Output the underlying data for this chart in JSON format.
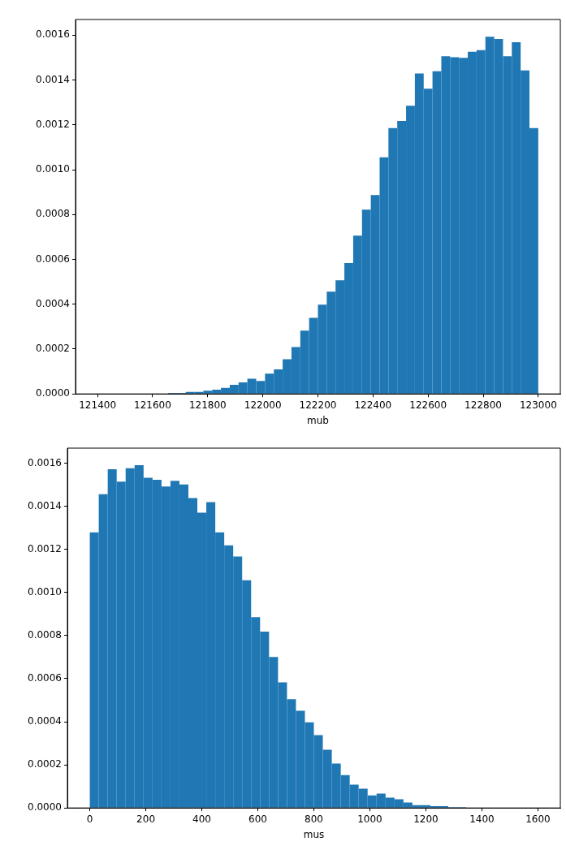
{
  "chart_data": [
    {
      "type": "histogram",
      "xlabel": "mub",
      "color": "#1f77b4",
      "grid": false,
      "xlim": [
        121320,
        123080
      ],
      "ylim": [
        0,
        0.00167
      ],
      "xticks": [
        121400,
        121600,
        121800,
        122000,
        122200,
        122400,
        122600,
        122800,
        123000
      ],
      "yticks": [
        {
          "value": 0,
          "label": "0.0000"
        },
        {
          "value": 0.0002,
          "label": "0.0002"
        },
        {
          "value": 0.0004,
          "label": "0.0004"
        },
        {
          "value": 0.0006,
          "label": "0.0006"
        },
        {
          "value": 0.0008,
          "label": "0.0008"
        },
        {
          "value": 0.001,
          "label": "0.0010"
        },
        {
          "value": 0.0012,
          "label": "0.0012"
        },
        {
          "value": 0.0014,
          "label": "0.0014"
        },
        {
          "value": 0.0016,
          "label": "0.0016"
        }
      ],
      "bins": [
        121400,
        121432,
        121464,
        121496,
        121528,
        121560,
        121592,
        121624,
        121656,
        121688,
        121720,
        121752,
        121784,
        121816,
        121848,
        121880,
        121912,
        121944,
        121976,
        122008,
        122040,
        122072,
        122104,
        122136,
        122168,
        122200,
        122232,
        122264,
        122296,
        122328,
        122360,
        122392,
        122424,
        122456,
        122488,
        122520,
        122552,
        122584,
        122616,
        122648,
        122680,
        122712,
        122744,
        122776,
        122808,
        122840,
        122872,
        122904,
        122936,
        122968,
        123000
      ],
      "values": [
        0,
        0,
        0,
        0,
        0,
        0,
        0,
        0,
        4e-06,
        4e-06,
        9e-06,
        9e-06,
        1.4e-05,
        1.9e-05,
        2.7e-05,
        4.1e-05,
        5.1e-05,
        6.8e-05,
        5.8e-05,
        9e-05,
        0.000109,
        0.000155,
        0.000209,
        0.000282,
        0.000339,
        0.000398,
        0.000456,
        0.000507,
        0.000584,
        0.000706,
        0.000822,
        0.000887,
        0.001055,
        0.001186,
        0.001217,
        0.001285,
        0.001429,
        0.001361,
        0.001439,
        0.001506,
        0.001502,
        0.001499,
        0.001526,
        0.001533,
        0.001593,
        0.001583,
        0.001506,
        0.001569,
        0.001443,
        0.001186
      ]
    },
    {
      "type": "histogram",
      "xlabel": "mus",
      "color": "#1f77b4",
      "grid": false,
      "xlim": [
        -80,
        1680
      ],
      "ylim": [
        0,
        0.00167
      ],
      "xticks": [
        0,
        200,
        400,
        600,
        800,
        1000,
        1200,
        1400,
        1600
      ],
      "yticks": [
        {
          "value": 0,
          "label": "0.0000"
        },
        {
          "value": 0.0002,
          "label": "0.0002"
        },
        {
          "value": 0.0004,
          "label": "0.0004"
        },
        {
          "value": 0.0006,
          "label": "0.0006"
        },
        {
          "value": 0.0008,
          "label": "0.0008"
        },
        {
          "value": 0.001,
          "label": "0.0010"
        },
        {
          "value": 0.0012,
          "label": "0.0012"
        },
        {
          "value": 0.0014,
          "label": "0.0014"
        },
        {
          "value": 0.0016,
          "label": "0.0016"
        }
      ],
      "bins": [
        0,
        32,
        64,
        96,
        128,
        160,
        192,
        224,
        256,
        288,
        320,
        352,
        384,
        416,
        448,
        480,
        512,
        544,
        576,
        608,
        640,
        672,
        704,
        736,
        768,
        800,
        832,
        864,
        896,
        928,
        960,
        992,
        1024,
        1056,
        1088,
        1120,
        1152,
        1184,
        1216,
        1248,
        1280,
        1312,
        1344,
        1376,
        1408,
        1440,
        1472,
        1504,
        1536,
        1568,
        1600
      ],
      "values": [
        0.001279,
        0.001456,
        0.001572,
        0.001515,
        0.001577,
        0.001591,
        0.001532,
        0.001523,
        0.001492,
        0.001518,
        0.001501,
        0.001438,
        0.00137,
        0.001419,
        0.001279,
        0.001219,
        0.001167,
        0.001057,
        0.000885,
        0.000818,
        0.000701,
        0.000583,
        0.000505,
        0.000451,
        0.000397,
        0.000338,
        0.00027,
        0.000206,
        0.000152,
        0.000108,
        8.9e-05,
        5.8e-05,
        6.7e-05,
        4.8e-05,
        4e-05,
        2.5e-05,
        1.3e-05,
        1.3e-05,
        8e-06,
        8e-06,
        4e-06,
        4e-06,
        0,
        0,
        0,
        0,
        0,
        0,
        0,
        0
      ]
    }
  ]
}
